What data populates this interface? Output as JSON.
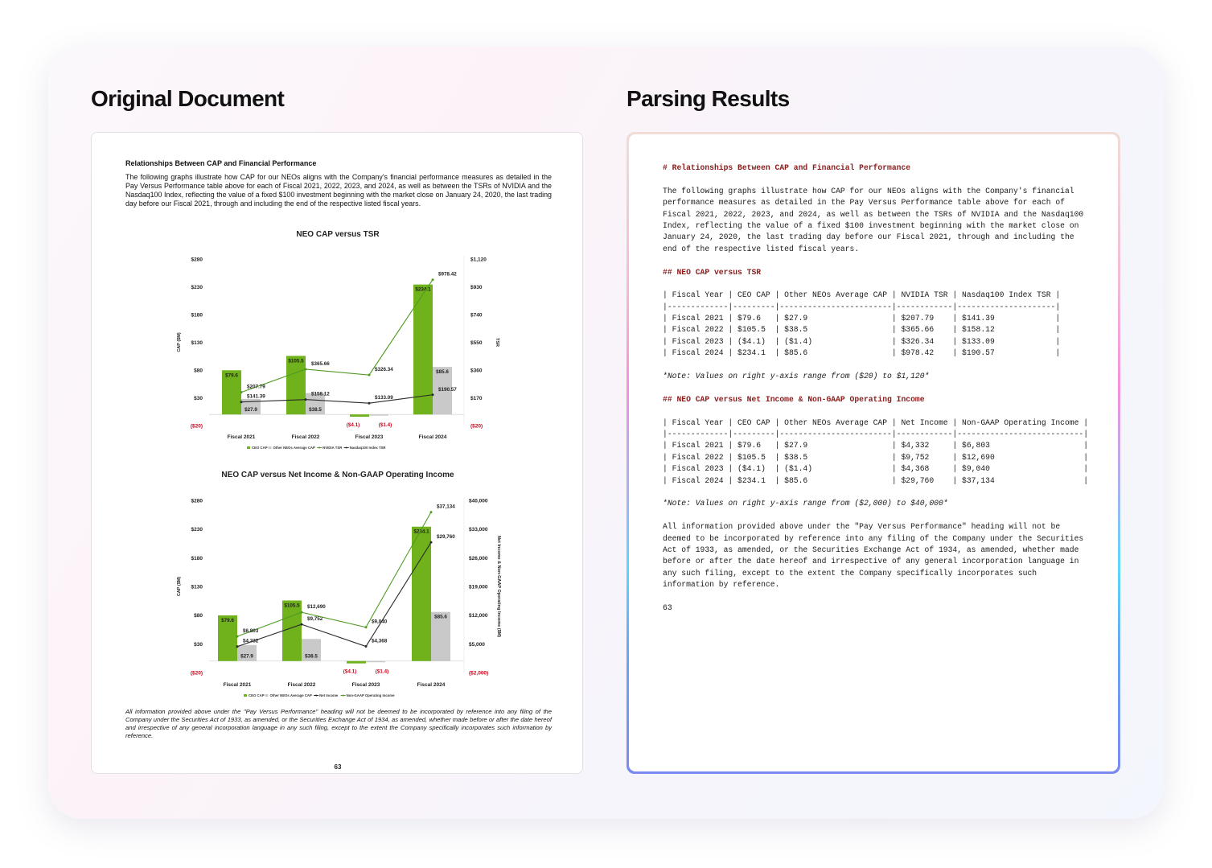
{
  "panels": {
    "left_title": "Original Document",
    "right_title": "Parsing Results"
  },
  "document": {
    "heading": "Relationships Between CAP and Financial Performance",
    "paragraph": "The following graphs illustrate how CAP for our NEOs aligns with the Company's financial performance measures as detailed in the Pay Versus Performance table above for each of Fiscal 2021, 2022, 2023, and 2024, as well as between the TSRs of NVIDIA and the Nasdaq100 Index, reflecting the value of a fixed $100 investment beginning with the market close on January 24, 2020, the last trading day before our Fiscal 2021, through and including the end of the respective listed fiscal years.",
    "footnote": "All information provided above under the \"Pay Versus Performance\" heading will not be deemed to be incorporated by reference into any filing of the Company under the Securities Act of 1933, as amended, or the Securities Exchange Act of 1934, as amended, whether made before or after the date hereof and irrespective of any general incorporation language in any such filing, except to the extent the Company specifically incorporates such information by reference.",
    "page_number": "63"
  },
  "chart_data": [
    {
      "type": "bar",
      "title": "NEO CAP versus TSR",
      "categories": [
        "Fiscal 2021",
        "Fiscal 2022",
        "Fiscal 2023",
        "Fiscal 2024"
      ],
      "ylabel": "CAP ($M)",
      "ylabel_right": "TSR",
      "ylim": [
        -20,
        280
      ],
      "yticks": [
        "$280",
        "$230",
        "$180",
        "$130",
        "$80",
        "$30",
        "($20)"
      ],
      "ylim_right": [
        -20,
        1120
      ],
      "yticks_right": [
        "$1,120",
        "$930",
        "$740",
        "$550",
        "$360",
        "$170",
        "($20)"
      ],
      "series": [
        {
          "name": "CEO CAP",
          "kind": "bar",
          "axis": "left",
          "color": "#6fb21c",
          "values": [
            79.6,
            105.5,
            -4.1,
            234.1
          ],
          "labels": [
            "$79.6",
            "$105.5",
            "($4.1)",
            "$234.1"
          ]
        },
        {
          "name": "Other NEOs Average CAP",
          "kind": "bar",
          "axis": "left",
          "color": "#c9c9c9",
          "values": [
            27.9,
            38.5,
            -1.4,
            85.6
          ],
          "labels": [
            "$27.9",
            "$38.5",
            "($1.4)",
            "$85.6"
          ]
        },
        {
          "name": "NVIDIA TSR",
          "kind": "line",
          "axis": "right",
          "color": "#4f9a22",
          "values": [
            207.79,
            365.66,
            326.34,
            978.42
          ],
          "labels": [
            "$207.79",
            "$365.66",
            "$326.34",
            "$978.42"
          ]
        },
        {
          "name": "Nasdaq100 Index TSR",
          "kind": "line",
          "axis": "right",
          "color": "#2b2b2b",
          "values": [
            141.39,
            158.12,
            133.09,
            190.57
          ],
          "labels": [
            "$141.39",
            "$158.12",
            "$133.09",
            "$190.57"
          ]
        }
      ],
      "legend": "bottom",
      "grid": false
    },
    {
      "type": "bar",
      "title": "NEO CAP versus Net Income & Non-GAAP Operating Income",
      "categories": [
        "Fiscal 2021",
        "Fiscal 2022",
        "Fiscal 2023",
        "Fiscal 2024"
      ],
      "ylabel": "CAP ($M)",
      "ylabel_right": "Net Income & Non-GAAP Operating Income ($M)",
      "ylim": [
        -20,
        280
      ],
      "yticks": [
        "$280",
        "$230",
        "$180",
        "$130",
        "$80",
        "$30",
        "($20)"
      ],
      "ylim_right": [
        -2000,
        40000
      ],
      "yticks_right": [
        "$40,000",
        "$33,000",
        "$26,000",
        "$19,000",
        "$12,000",
        "$5,000",
        "($2,000)"
      ],
      "series": [
        {
          "name": "CEO CAP",
          "kind": "bar",
          "axis": "left",
          "color": "#6fb21c",
          "values": [
            79.6,
            105.5,
            -4.1,
            234.1
          ],
          "labels": [
            "$79.6",
            "$105.5",
            "($4.1)",
            "$234.1"
          ]
        },
        {
          "name": "Other NEOs Average CAP",
          "kind": "bar",
          "axis": "left",
          "color": "#c9c9c9",
          "values": [
            27.9,
            38.5,
            -1.4,
            85.6
          ],
          "labels": [
            "$27.9",
            "$38.5",
            "($1.4)",
            "$85.6"
          ]
        },
        {
          "name": "Net Income",
          "kind": "line",
          "axis": "right",
          "color": "#2b2b2b",
          "values": [
            4332,
            9752,
            4368,
            29760
          ],
          "labels": [
            "$4,332",
            "$9,752",
            "$4,368",
            "$29,760"
          ]
        },
        {
          "name": "Non-GAAP Operating Income",
          "kind": "line",
          "axis": "right",
          "color": "#4f9a22",
          "values": [
            6803,
            12690,
            9040,
            37134
          ],
          "labels": [
            "$6,803",
            "$12,690",
            "$9,040",
            "$37,134"
          ]
        }
      ],
      "legend": "bottom",
      "grid": false
    }
  ],
  "colors": {
    "negative_label": "#d0021b",
    "markdown_heading": "#8b1c1c"
  },
  "parsed": {
    "lines": [
      {
        "t": "h",
        "s": "# Relationships Between CAP and Financial Performance"
      },
      {
        "t": "b",
        "s": ""
      },
      {
        "t": "p",
        "s": "The following graphs illustrate how CAP for our NEOs aligns with the Company's financial"
      },
      {
        "t": "p",
        "s": "performance measures as detailed in the Pay Versus Performance table above for each of"
      },
      {
        "t": "p",
        "s": "Fiscal 2021, 2022, 2023, and 2024, as well as between the TSRs of NVIDIA and the Nasdaq100"
      },
      {
        "t": "p",
        "s": "Index, reflecting the value of a fixed $100 investment beginning with the market close on"
      },
      {
        "t": "p",
        "s": "January 24, 2020, the last trading day before our Fiscal 2021, through and including the"
      },
      {
        "t": "p",
        "s": "end of the respective listed fiscal years."
      },
      {
        "t": "b",
        "s": ""
      },
      {
        "t": "h",
        "s": "## NEO CAP versus TSR"
      },
      {
        "t": "b",
        "s": ""
      },
      {
        "t": "p",
        "s": "| Fiscal Year | CEO CAP | Other NEOs Average CAP | NVIDIA TSR | Nasdaq100 Index TSR |"
      },
      {
        "t": "p",
        "s": "|-------------|---------|------------------------|------------|---------------------|"
      },
      {
        "t": "p",
        "s": "| Fiscal 2021 | $79.6   | $27.9                  | $207.79    | $141.39             |"
      },
      {
        "t": "p",
        "s": "| Fiscal 2022 | $105.5  | $38.5                  | $365.66    | $158.12             |"
      },
      {
        "t": "p",
        "s": "| Fiscal 2023 | ($4.1)  | ($1.4)                 | $326.34    | $133.09             |"
      },
      {
        "t": "p",
        "s": "| Fiscal 2024 | $234.1  | $85.6                  | $978.42    | $190.57             |"
      },
      {
        "t": "b",
        "s": ""
      },
      {
        "t": "n",
        "s": "*Note: Values on right y-axis range from ($20) to $1,120*"
      },
      {
        "t": "b",
        "s": ""
      },
      {
        "t": "h",
        "s": "## NEO CAP versus Net Income & Non-GAAP Operating Income"
      },
      {
        "t": "b",
        "s": ""
      },
      {
        "t": "p",
        "s": "| Fiscal Year | CEO CAP | Other NEOs Average CAP | Net Income | Non-GAAP Operating Income |"
      },
      {
        "t": "p",
        "s": "|-------------|---------|------------------------|------------|---------------------------|"
      },
      {
        "t": "p",
        "s": "| Fiscal 2021 | $79.6   | $27.9                  | $4,332     | $6,803                    |"
      },
      {
        "t": "p",
        "s": "| Fiscal 2022 | $105.5  | $38.5                  | $9,752     | $12,690                   |"
      },
      {
        "t": "p",
        "s": "| Fiscal 2023 | ($4.1)  | ($1.4)                 | $4,368     | $9,040                    |"
      },
      {
        "t": "p",
        "s": "| Fiscal 2024 | $234.1  | $85.6                  | $29,760    | $37,134                   |"
      },
      {
        "t": "b",
        "s": ""
      },
      {
        "t": "n",
        "s": "*Note: Values on right y-axis range from ($2,000) to $40,000*"
      },
      {
        "t": "b",
        "s": ""
      },
      {
        "t": "p",
        "s": "All information provided above under the \"Pay Versus Performance\" heading will not be"
      },
      {
        "t": "p",
        "s": "deemed to be incorporated by reference into any filing of the Company under the Securities"
      },
      {
        "t": "p",
        "s": "Act of 1933, as amended, or the Securities Exchange Act of 1934, as amended, whether made"
      },
      {
        "t": "p",
        "s": "before or after the date hereof and irrespective of any general incorporation language in"
      },
      {
        "t": "p",
        "s": "any such filing, except to the extent the Company specifically incorporates such"
      },
      {
        "t": "p",
        "s": "information by reference."
      },
      {
        "t": "b",
        "s": ""
      },
      {
        "t": "p",
        "s": "63"
      }
    ]
  }
}
